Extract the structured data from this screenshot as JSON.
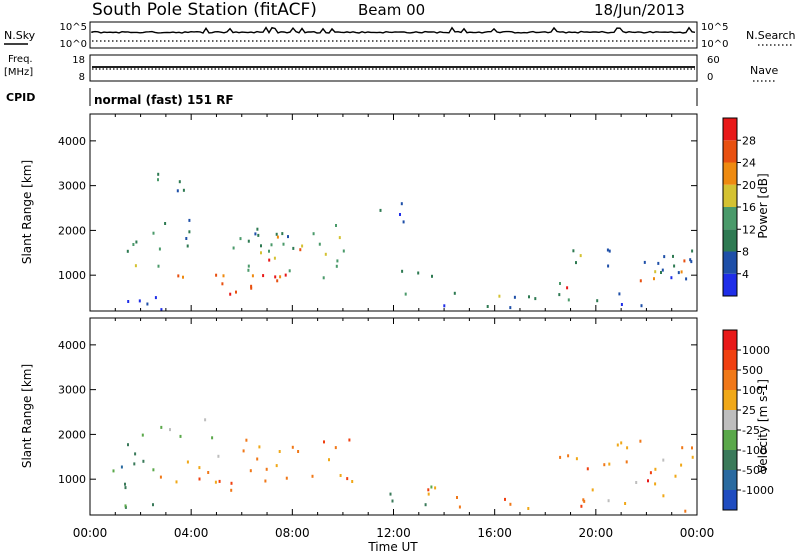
{
  "header": {
    "station": "South Pole Station (fitACF)",
    "beam": "Beam 00",
    "date": "18/Jun/2013"
  },
  "params": {
    "nsky_label": "N.Sky",
    "nsearch_label": "N.Search",
    "freq_label_1": "Freq.",
    "freq_label_2": "[MHz]",
    "nave_label": "Nave",
    "cpid_label": "CPID",
    "cpid_value": "normal (fast) 151 RF",
    "noise_ticks_left": [
      "10^5",
      "10^0"
    ],
    "noise_ticks_right": [
      "10^5",
      "10^0"
    ],
    "freq_ticks": [
      "18",
      "8"
    ],
    "nave_ticks": [
      "60",
      "0"
    ]
  },
  "chart_data": [
    {
      "type": "heatmap",
      "name": "power",
      "ylabel": "Slant Range [km]",
      "yticks": [
        1000,
        2000,
        3000,
        4000
      ],
      "ylim": [
        200,
        4600
      ],
      "xlim": [
        0,
        24
      ],
      "colorbar": {
        "label": "Power [dB]",
        "ticks": [
          "4",
          "8",
          "12",
          "16",
          "20",
          "24",
          "28"
        ],
        "colors": [
          "#1f2ee8",
          "#1e4fa8",
          "#2e7a52",
          "#4a9a6a",
          "#d4c232",
          "#ee8a10",
          "#e85010",
          "#e81818"
        ]
      },
      "blobs": [
        {
          "t0": 0.8,
          "t1": 1.8,
          "r0": 1400,
          "r1": 1950,
          "c": 2
        },
        {
          "t0": 1.4,
          "t1": 3.0,
          "r0": 1100,
          "r1": 1800,
          "c": 3
        },
        {
          "t0": 1.8,
          "t1": 4.2,
          "r0": 1750,
          "r1": 2350,
          "c": 2
        },
        {
          "t0": 3.0,
          "t1": 5.0,
          "r0": 800,
          "r1": 1300,
          "c": 5
        },
        {
          "t0": 4.2,
          "t1": 6.8,
          "r0": 600,
          "r1": 1200,
          "c": 6
        },
        {
          "t0": 5.2,
          "t1": 6.4,
          "r0": 550,
          "r1": 1000,
          "c": 7
        },
        {
          "t0": 3.8,
          "t1": 8.2,
          "r0": 1500,
          "r1": 2150,
          "c": 2
        },
        {
          "t0": 6.2,
          "t1": 10.6,
          "r0": 800,
          "r1": 2150,
          "c": 3
        },
        {
          "t0": 6.5,
          "t1": 9.0,
          "r0": 900,
          "r1": 1900,
          "c": 6
        },
        {
          "t0": 2.2,
          "t1": 4.0,
          "r0": 2700,
          "r1": 3500,
          "c": 2
        },
        {
          "t0": 0.4,
          "t1": 3.5,
          "r0": 250,
          "r1": 700,
          "c": 0
        },
        {
          "t0": 10.8,
          "t1": 12.4,
          "r0": 2200,
          "r1": 2900,
          "c": 1
        },
        {
          "t0": 11.8,
          "t1": 13.5,
          "r0": 500,
          "r1": 1150,
          "c": 2
        },
        {
          "t0": 13.0,
          "t1": 17.8,
          "r0": 300,
          "r1": 700,
          "c": 1
        },
        {
          "t0": 15.5,
          "t1": 17.5,
          "r0": 350,
          "r1": 600,
          "c": 3
        },
        {
          "t0": 18.2,
          "t1": 19.6,
          "r0": 400,
          "r1": 1700,
          "c": 3
        },
        {
          "t0": 18.8,
          "t1": 19.4,
          "r0": 600,
          "r1": 1200,
          "c": 7
        },
        {
          "t0": 20.0,
          "t1": 23.8,
          "r0": 300,
          "r1": 1900,
          "c": 1
        },
        {
          "t0": 21.5,
          "t1": 23.5,
          "r0": 800,
          "r1": 1500,
          "c": 5
        }
      ]
    },
    {
      "type": "heatmap",
      "name": "velocity",
      "ylabel": "Slant Range [km]",
      "xlabel": "Time UT",
      "xticks": [
        "00:00",
        "04:00",
        "08:00",
        "12:00",
        "16:00",
        "20:00",
        "00:00"
      ],
      "yticks": [
        1000,
        2000,
        3000,
        4000
      ],
      "ylim": [
        200,
        4600
      ],
      "xlim": [
        0,
        24
      ],
      "colorbar": {
        "label": "Velocity [m s-1]",
        "ticks": [
          "1000",
          "500",
          "100",
          "25",
          "-25",
          "-100",
          "-500",
          "-1000"
        ],
        "colors": [
          "#1f4cc0",
          "#2a6aa0",
          "#3a7a5a",
          "#5aa84a",
          "#bebebe",
          "#f0a818",
          "#f07818",
          "#f04010",
          "#e81818"
        ]
      },
      "blobs": [
        {
          "t0": 0.8,
          "t1": 2.4,
          "r0": 1200,
          "r1": 1900,
          "c": 2
        },
        {
          "t0": 1.2,
          "t1": 3.0,
          "r0": 700,
          "r1": 1500,
          "c": 3
        },
        {
          "t0": 2.0,
          "t1": 5.6,
          "r0": 1950,
          "r1": 2450,
          "c": 4
        },
        {
          "t0": 2.6,
          "t1": 5.2,
          "r0": 900,
          "r1": 1700,
          "c": 5
        },
        {
          "t0": 4.2,
          "t1": 7.0,
          "r0": 700,
          "r1": 1300,
          "c": 6
        },
        {
          "t0": 6.0,
          "t1": 10.6,
          "r0": 800,
          "r1": 1950,
          "c": 6
        },
        {
          "t0": 0.4,
          "t1": 3.0,
          "r0": 250,
          "r1": 650,
          "c": 3
        },
        {
          "t0": 11.8,
          "t1": 13.5,
          "r0": 450,
          "r1": 1150,
          "c": 2
        },
        {
          "t0": 12.6,
          "t1": 15.0,
          "r0": 400,
          "r1": 900,
          "c": 6
        },
        {
          "t0": 14.5,
          "t1": 17.8,
          "r0": 300,
          "r1": 650,
          "c": 6
        },
        {
          "t0": 18.2,
          "t1": 19.8,
          "r0": 400,
          "r1": 1700,
          "c": 6
        },
        {
          "t0": 19.8,
          "t1": 23.8,
          "r0": 300,
          "r1": 1900,
          "c": 5
        },
        {
          "t0": 21.5,
          "t1": 22.5,
          "r0": 900,
          "r1": 1500,
          "c": 7
        }
      ]
    }
  ]
}
